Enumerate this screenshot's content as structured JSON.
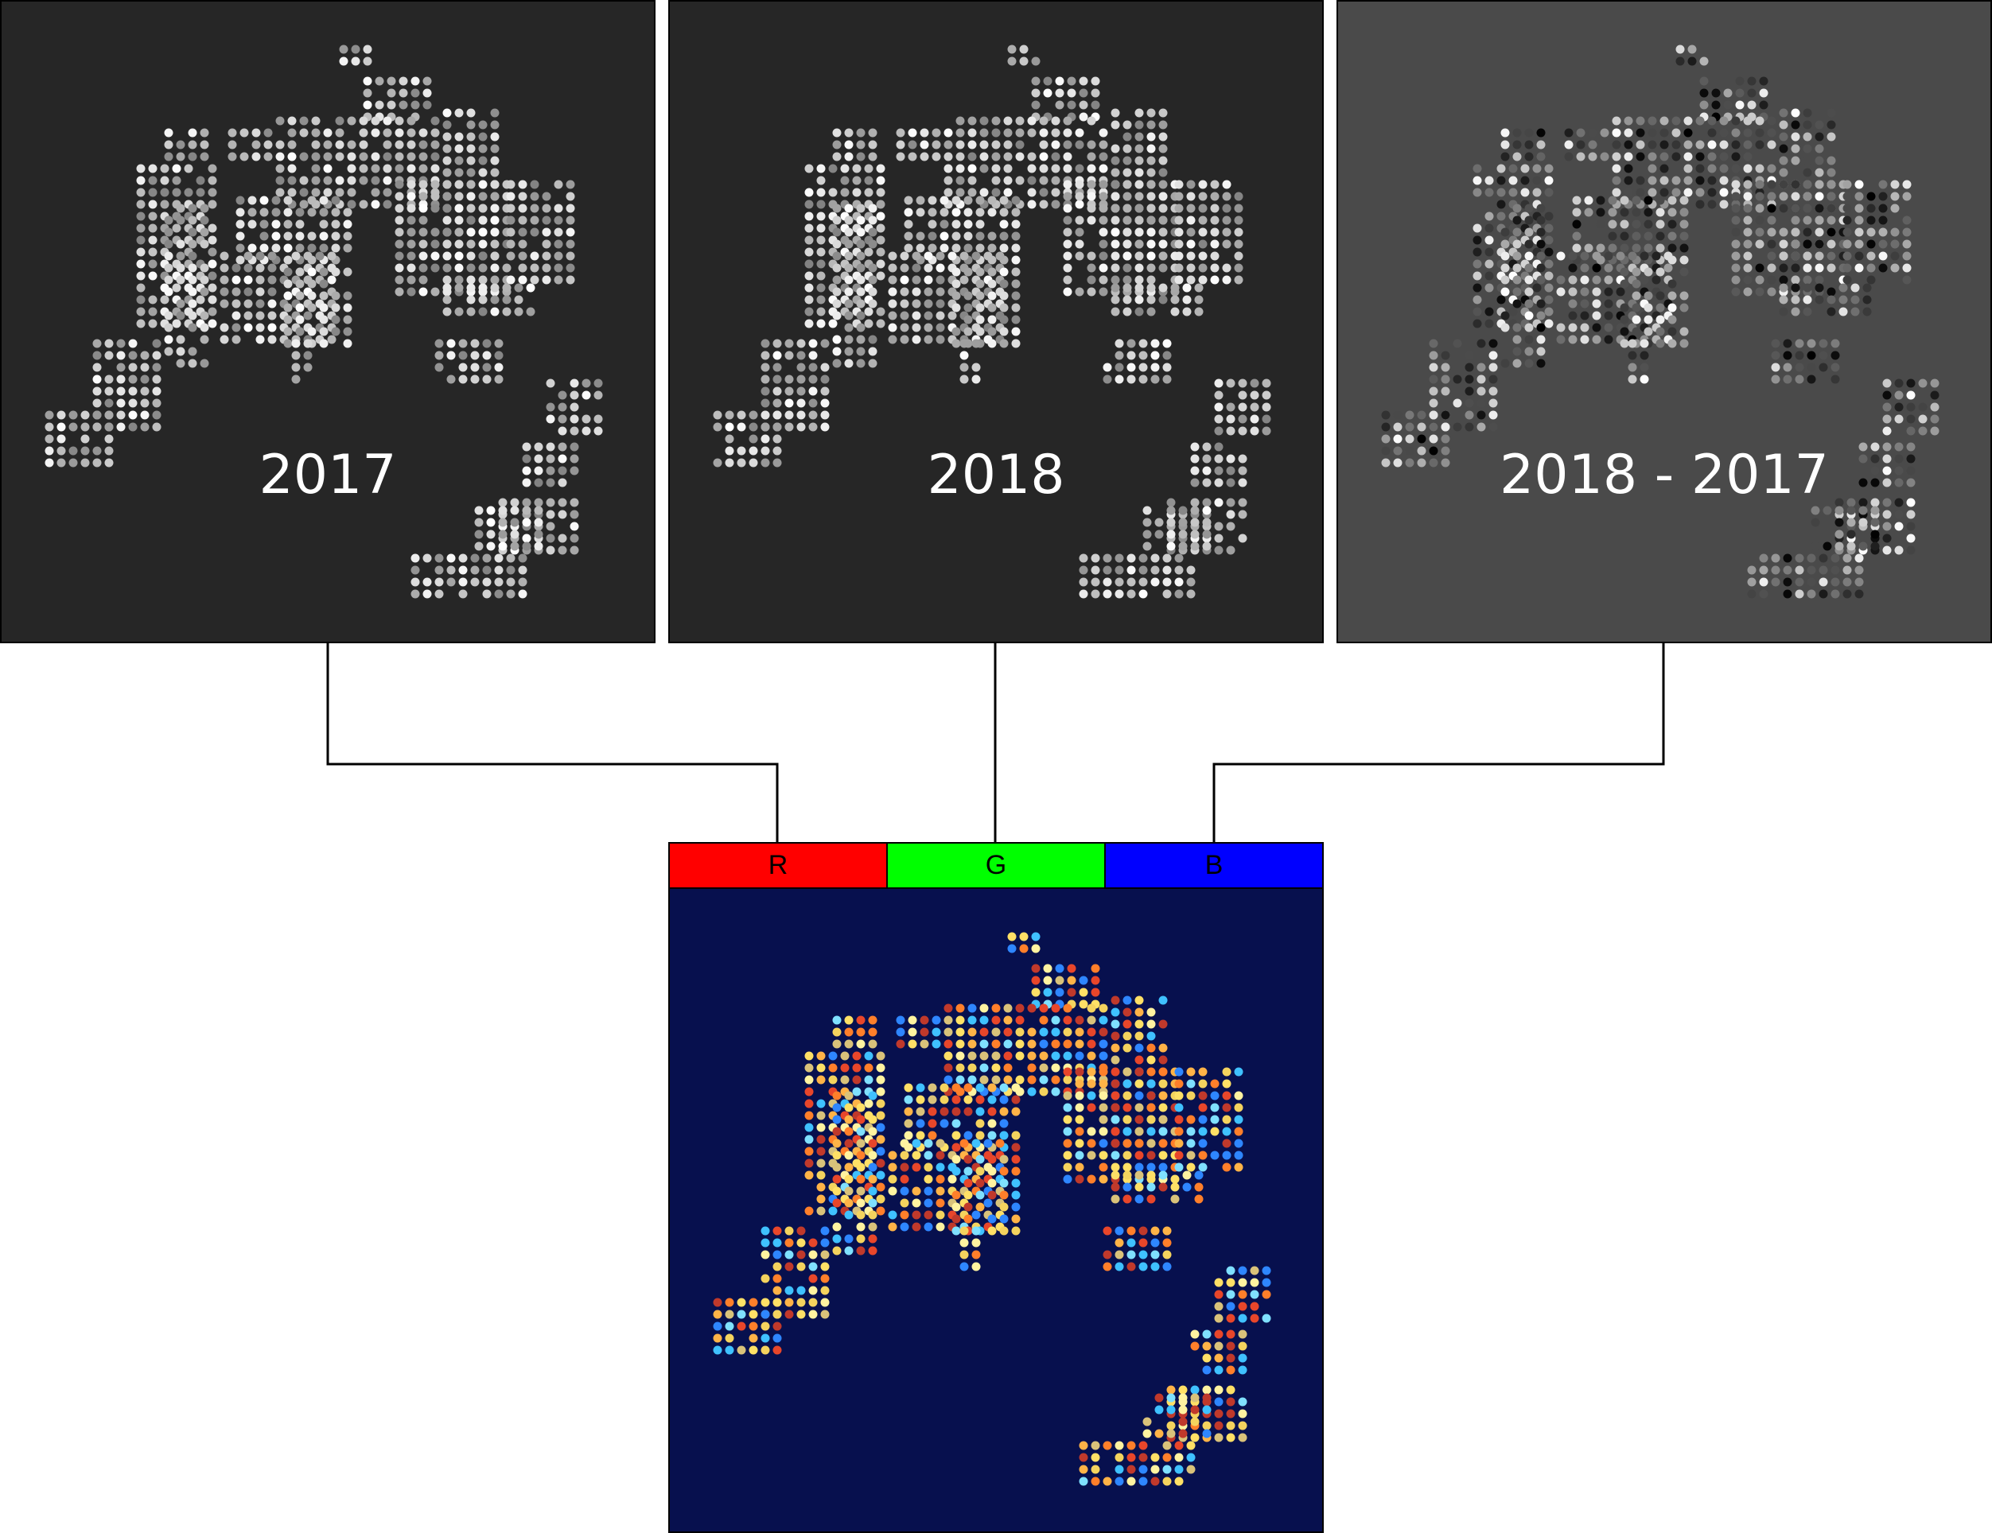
{
  "panels": {
    "year_a": {
      "label": "2017",
      "background": "#262626"
    },
    "year_b": {
      "label": "2018",
      "background": "#262626"
    },
    "difference": {
      "label": "2018 - 2017",
      "background": "#4a4a4a"
    },
    "composite": {
      "background": "#07104e"
    }
  },
  "channels": [
    {
      "label": "R",
      "color": "#ff0000"
    },
    {
      "label": "G",
      "color": "#00ff00"
    },
    {
      "label": "B",
      "color": "#0000ff"
    }
  ],
  "palette": {
    "composite_dots": [
      "#ffe066",
      "#ffb347",
      "#ff7f2a",
      "#e8462a",
      "#c0392b",
      "#7fe0ff",
      "#3fc1ff",
      "#2e86ff",
      "#f4d35e",
      "#fff3a0",
      "#d9c27a"
    ]
  }
}
